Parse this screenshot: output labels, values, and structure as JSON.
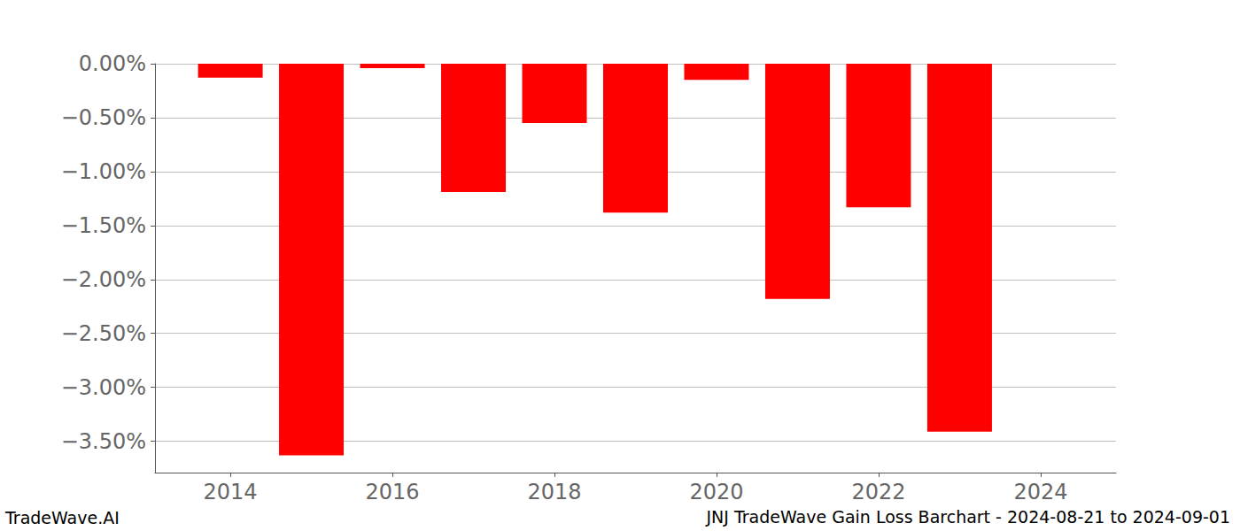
{
  "chart_data": {
    "type": "bar",
    "title": "JNJ TradeWave Gain Loss Barchart - 2024-08-21 to 2024-09-01",
    "annotations": [
      "TradeWave.AI"
    ],
    "x": [
      2014,
      2015,
      2016,
      2017,
      2018,
      2019,
      2020,
      2021,
      2022,
      2023
    ],
    "values": [
      -0.13,
      -3.63,
      -0.04,
      -1.19,
      -0.55,
      -1.38,
      -0.15,
      -2.18,
      -1.33,
      -3.41
    ],
    "color": "#ff0000",
    "xlim": [
      2013.07,
      2024.93
    ],
    "xticks": [
      2014,
      2016,
      2018,
      2020,
      2022,
      2024
    ],
    "ylim": [
      -3.79,
      0
    ],
    "yticks": [
      {
        "value": 0,
        "label": "0.00%"
      },
      {
        "value": -0.5,
        "label": "−0.50%"
      },
      {
        "value": -1.0,
        "label": "−1.00%"
      },
      {
        "value": -1.5,
        "label": "−1.50%"
      },
      {
        "value": -2.0,
        "label": "−2.00%"
      },
      {
        "value": -2.5,
        "label": "−2.50%"
      },
      {
        "value": -3.0,
        "label": "−3.00%"
      },
      {
        "value": -3.5,
        "label": "−3.50%"
      }
    ],
    "grid": true
  }
}
